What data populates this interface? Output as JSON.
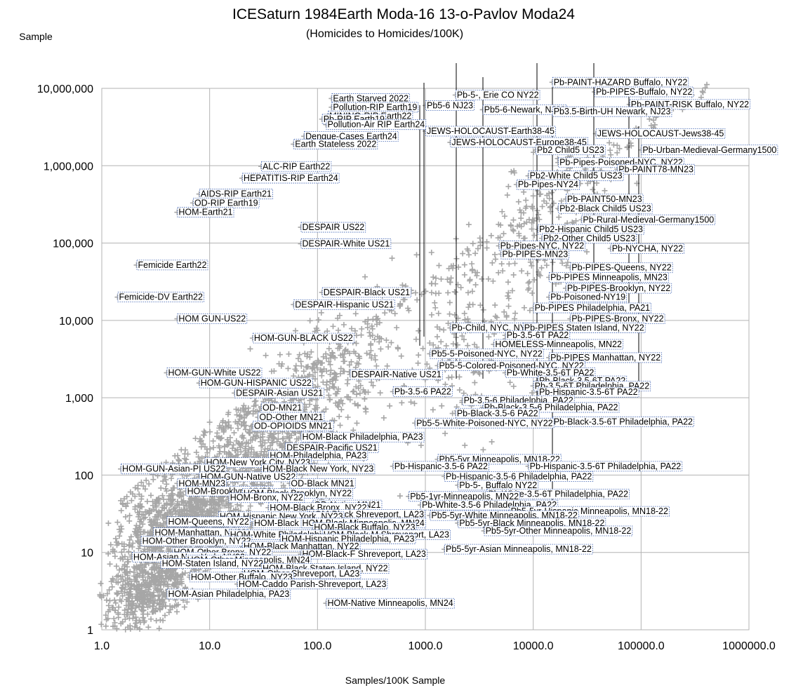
{
  "chart_data": {
    "type": "scatter",
    "title": "ICESaturn 1984Earth Moda-16 13-o-Pavlov Moda24",
    "subtitle": "(Homicides to Homicides/100K)",
    "xlabel": "Samples/100K Sample",
    "ylabel": "Sample",
    "x_scale": "log",
    "y_scale": "log",
    "xlim": [
      1,
      1000000
    ],
    "ylim": [
      1,
      10000000
    ],
    "x_ticks": [
      "1.0",
      "10.0",
      "100.0",
      "1000.0",
      "10000.0",
      "100000.0",
      "1000000.0"
    ],
    "y_ticks": [
      "1",
      "10",
      "100",
      "1,000",
      "10,000",
      "100,000",
      "1,000,000",
      "10,000,000"
    ],
    "grid": true,
    "legend": "none",
    "marker_color": "#a6a6a6",
    "labeled_points": [
      {
        "label": "Earth Starved 2022",
        "x": 135,
        "y": 7400000
      },
      {
        "label": "Pollution-RIP Earth19",
        "x": 135,
        "y": 5700000
      },
      {
        "label": "MINING-RIP Earth22",
        "x": 125,
        "y": 4400000
      },
      {
        "label": "Pb-RIP Earth19",
        "x": 110,
        "y": 4000000
      },
      {
        "label": "Pollution-Air RIP Earth24",
        "x": 120,
        "y": 3400000
      },
      {
        "label": "Dengue-Cases Earth24",
        "x": 75,
        "y": 2400000
      },
      {
        "label": "Earth Stateless 2022",
        "x": 60,
        "y": 1900000
      },
      {
        "label": "ALC-RIP Earth22",
        "x": 30,
        "y": 980000
      },
      {
        "label": "HEPATITIS-RIP Earth24",
        "x": 20,
        "y": 690000
      },
      {
        "label": "AIDS-RIP Earth21",
        "x": 8,
        "y": 430000
      },
      {
        "label": "OD-RIP Earth19",
        "x": 7,
        "y": 330000
      },
      {
        "label": "HOM-Earth21",
        "x": 5,
        "y": 250000
      },
      {
        "label": "Femicide Earth22",
        "x": 2.1,
        "y": 52000
      },
      {
        "label": "Femicide-DV Earth22",
        "x": 1.4,
        "y": 20000
      },
      {
        "label": "HOM GUN-US22",
        "x": 5,
        "y": 10500
      },
      {
        "label": "HOM-GUN-BLACK US22",
        "x": 25,
        "y": 5900
      },
      {
        "label": "HOM-GUN-White US22",
        "x": 4,
        "y": 2100
      },
      {
        "label": "HOM-GUN-HISPANIC US22",
        "x": 8,
        "y": 1550
      },
      {
        "label": "DESPAIR-Asian US21",
        "x": 17,
        "y": 1150
      },
      {
        "label": "DESPAIR US22",
        "x": 70,
        "y": 160000
      },
      {
        "label": "DESPAIR-White US21",
        "x": 70,
        "y": 98000
      },
      {
        "label": "DESPAIR-Black US21",
        "x": 110,
        "y": 23000
      },
      {
        "label": "DESPAIR-Hispanic US21",
        "x": 60,
        "y": 16000
      },
      {
        "label": "DESPAIR-Native US21",
        "x": 200,
        "y": 2000
      },
      {
        "label": "OD-MN21",
        "x": 30,
        "y": 740
      },
      {
        "label": "OD-Other MN21",
        "x": 28,
        "y": 560
      },
      {
        "label": "OD-OPIOIDS MN21",
        "x": 25,
        "y": 430
      },
      {
        "label": "HOM-Black Philadelphia, PA23",
        "x": 70,
        "y": 310
      },
      {
        "label": "DESPAIR-Pacific US21",
        "x": 50,
        "y": 225
      },
      {
        "label": "HOM-Philadelphia, PA23",
        "x": 35,
        "y": 180
      },
      {
        "label": "HOM-New York City, NY23",
        "x": 9,
        "y": 145
      },
      {
        "label": "HOM-GUN-Asian-PI US22",
        "x": 1.5,
        "y": 120
      },
      {
        "label": "HOM-Black New York, NY23",
        "x": 30,
        "y": 120
      },
      {
        "label": "HOM-GUN-Native US22",
        "x": 8,
        "y": 95
      },
      {
        "label": "HOM-MN23",
        "x": 5,
        "y": 78
      },
      {
        "label": "OD-Black MN21",
        "x": 55,
        "y": 78
      },
      {
        "label": "HOM-Brooklyn, NY22",
        "x": 6,
        "y": 62
      },
      {
        "label": "HOM-Black Brooklyn, NY22",
        "x": 20,
        "y": 58
      },
      {
        "label": "HOM-Bronx, NY22",
        "x": 15,
        "y": 51
      },
      {
        "label": "OD-Native MN21",
        "x": 90,
        "y": 41
      },
      {
        "label": "HOM-Black Bronx, NY22",
        "x": 35,
        "y": 38
      },
      {
        "label": "HOM-Black Shreveport, LA23",
        "x": 80,
        "y": 31
      },
      {
        "label": "HOM-Hispanic New York, NY23",
        "x": 12,
        "y": 29
      },
      {
        "label": "HOM-Queens, NY22",
        "x": 4,
        "y": 25
      },
      {
        "label": "HOM-Black Queens, NY22",
        "x": 25,
        "y": 24
      },
      {
        "label": "HOM-Black Minneapolis, MN24",
        "x": 70,
        "y": 24
      },
      {
        "label": "HOM-Black Buffalo, NY23",
        "x": 90,
        "y": 21
      },
      {
        "label": "HOM-Manhattan, NY22",
        "x": 3,
        "y": 18
      },
      {
        "label": "HOM-White Philadelphia, PA23",
        "x": 15,
        "y": 17
      },
      {
        "label": "HOM-Black-M Shreveport, LA23",
        "x": 110,
        "y": 17
      },
      {
        "label": "HOM-Hispanic Philadelphia, PA23",
        "x": 45,
        "y": 15
      },
      {
        "label": "HOM-Other Brooklyn, NY22",
        "x": 2.3,
        "y": 14
      },
      {
        "label": "HOM-Black Manhattan, NY22",
        "x": 20,
        "y": 12
      },
      {
        "label": "HOM-Other Bronx, NY22",
        "x": 4.5,
        "y": 10
      },
      {
        "label": "HOM-Black-F Shreveport, LA23",
        "x": 70,
        "y": 9.5
      },
      {
        "label": "HOM-Asian New York, NY23",
        "x": 1.9,
        "y": 8.7
      },
      {
        "label": "HOM-Other Minneapolis, MN24",
        "x": 6,
        "y": 8
      },
      {
        "label": "HOM-Staten Island, NY22",
        "x": 3.5,
        "y": 7.2
      },
      {
        "label": "HOM-Black Staten Island, NY22",
        "x": 30,
        "y": 6.2
      },
      {
        "label": "HOM-Other Shreveport, LA23",
        "x": 20,
        "y": 5.3
      },
      {
        "label": "HOM-Other Buffalo, NY23",
        "x": 6.5,
        "y": 4.8
      },
      {
        "label": "HOM-Caddo Parish-Shreveport, LA23",
        "x": 18,
        "y": 3.9
      },
      {
        "label": "HOM-Asian Philadelphia, PA23",
        "x": 4,
        "y": 2.9
      },
      {
        "label": "HOM-Native Minneapolis, MN24",
        "x": 120,
        "y": 2.2
      },
      {
        "label": "Pb5-6 NJ23",
        "x": 1000,
        "y": 6000000
      },
      {
        "label": "Pb-5-, Erie CO NY22",
        "x": 1900,
        "y": 8200000
      },
      {
        "label": "Pb5-6-Newark, NJ23",
        "x": 3400,
        "y": 5300000
      },
      {
        "label": "JEWS-HOLOCAUST-Earth38-45",
        "x": 1000,
        "y": 2800000
      },
      {
        "label": "JEWS-HOLOCAUST-Europe38-45",
        "x": 1700,
        "y": 2000000
      },
      {
        "label": "Pb-PAINT-HAZARD Buffalo, NY22",
        "x": 15000,
        "y": 12000000
      },
      {
        "label": "Pb-PIPES-Buffalo, NY22",
        "x": 37000,
        "y": 9000000
      },
      {
        "label": "Pb-PAINT-RISK Buffalo, NY22",
        "x": 78000,
        "y": 6200000
      },
      {
        "label": "Pb3.5-Birth-UH Newark, NJ23",
        "x": 15000,
        "y": 5000000
      },
      {
        "label": "JEWS-HOLOCAUST-Jews38-45",
        "x": 38000,
        "y": 2600000
      },
      {
        "label": "Pb2 Child5 US23",
        "x": 10500,
        "y": 1600000
      },
      {
        "label": "Pb-Urban-Medieval-Germany1500",
        "x": 100000,
        "y": 1600000
      },
      {
        "label": "Pb-Pipes-Poisoned-NYC, NY22",
        "x": 17000,
        "y": 1100000
      },
      {
        "label": "Pb-PAINT78-MN23",
        "x": 60000,
        "y": 900000
      },
      {
        "label": "Pb2-White Child5 US23",
        "x": 9000,
        "y": 740000
      },
      {
        "label": "Pb-Pipes-NY24",
        "x": 7000,
        "y": 570000
      },
      {
        "label": "Pb-PAINT50-MN23",
        "x": 20000,
        "y": 370000
      },
      {
        "label": "Pb2-Black Child5 US23",
        "x": 17000,
        "y": 280000
      },
      {
        "label": "Pb-Rural-Medieval-Germany1500",
        "x": 28000,
        "y": 200000
      },
      {
        "label": "Pb2-Hispanic Child5 US23",
        "x": 11000,
        "y": 150000
      },
      {
        "label": "Pb2-Other Child5 US23",
        "x": 12000,
        "y": 115000
      },
      {
        "label": "Pb-Pipes-NYC, NY22",
        "x": 4800,
        "y": 92000
      },
      {
        "label": "Pb-PIPES-MN23",
        "x": 5000,
        "y": 72000
      },
      {
        "label": "Pb-NYCHA, NY22",
        "x": 52000,
        "y": 85000
      },
      {
        "label": "Pb-PIPES-Queens, NY22",
        "x": 22000,
        "y": 48000
      },
      {
        "label": "Pb-PIPES Minneapolis, MN23",
        "x": 14000,
        "y": 36000
      },
      {
        "label": "Pb-PIPES-Brooklyn, NY22",
        "x": 20000,
        "y": 26000
      },
      {
        "label": "Pb-Poisoned-NY19",
        "x": 14000,
        "y": 20000
      },
      {
        "label": "Pb-PIPES Philadelphia, PA21",
        "x": 10000,
        "y": 14500
      },
      {
        "label": "Pb-PIPES-Bronx, NY22",
        "x": 22000,
        "y": 10500
      },
      {
        "label": "Pb-Child, NYC, NY23",
        "x": 1700,
        "y": 8000
      },
      {
        "label": "Pb-PIPES Staten Island, NY22",
        "x": 8000,
        "y": 8000
      },
      {
        "label": "Pb-3.5-6T PA22",
        "x": 5500,
        "y": 6400
      },
      {
        "label": "HOMELESS-Minneapolis, MN22",
        "x": 4300,
        "y": 4900
      },
      {
        "label": "Pb5-5-Poisoned-NYC, NY22",
        "x": 1100,
        "y": 3700
      },
      {
        "label": "Pb-PIPES Manhattan, NY22",
        "x": 14000,
        "y": 3300
      },
      {
        "label": "Pb5-5-Colored-Poisoned-NYC, NY22",
        "x": 1300,
        "y": 2600
      },
      {
        "label": "Pb-White-3.5-6T PA22",
        "x": 5500,
        "y": 2100
      },
      {
        "label": "Pb-Black-3.5-6T PA22",
        "x": 11000,
        "y": 1650
      },
      {
        "label": "Pb-3.5-6T Philadelphia, PA22",
        "x": 10000,
        "y": 1420
      },
      {
        "label": "Pb-Hispanic-3.5-6T PA22",
        "x": 11000,
        "y": 1180
      },
      {
        "label": "Pb-3.5-6 PA22",
        "x": 500,
        "y": 1200
      },
      {
        "label": "Pb-3.5-6 Philadelphia, PA22",
        "x": 2200,
        "y": 920
      },
      {
        "label": "Pb-Black-3.5-6 Philadelphia, PA22",
        "x": 3400,
        "y": 750
      },
      {
        "label": "Pb-Black-3.5-6 PA22",
        "x": 1900,
        "y": 630
      },
      {
        "label": "Pb-Black-3.5-6T Philadelphia, PA22",
        "x": 15000,
        "y": 490
      },
      {
        "label": "Pb5-5-White-Poisoned-NYC, NY22",
        "x": 800,
        "y": 470
      },
      {
        "label": "Pb5-5yr Minneapolis, MN18-22",
        "x": 1300,
        "y": 160
      },
      {
        "label": "Pb-Hispanic-3.5-6 PA22",
        "x": 500,
        "y": 130
      },
      {
        "label": "Pb-Hispanic-3.5-6T Philadelphia, PA22",
        "x": 9000,
        "y": 130
      },
      {
        "label": "Pb-Hispanic-3.5-6 Philadelphia, PA22",
        "x": 1500,
        "y": 96
      },
      {
        "label": "Pb-5-, Buffalo NY22",
        "x": 2000,
        "y": 74
      },
      {
        "label": "Pb-White-3.5-6T Philadelphia, PA22",
        "x": 3700,
        "y": 57
      },
      {
        "label": "Pb5-1yr-Minneapolis, MN22",
        "x": 700,
        "y": 53
      },
      {
        "label": "Pb-White-3.5-6 Philadelphia, PA22",
        "x": 900,
        "y": 41
      },
      {
        "label": "Pb5-5yr-Hispanic Minneapolis, MN18-22",
        "x": 6000,
        "y": 34
      },
      {
        "label": "Pb5-5yr-White Minneapolis, MN18-22",
        "x": 1100,
        "y": 30
      },
      {
        "label": "Pb5-5yr-Black Minneapolis, MN18-22",
        "x": 2000,
        "y": 24
      },
      {
        "label": "Pb5-5yr-Other Minneapolis, MN18-22",
        "x": 3500,
        "y": 19
      },
      {
        "label": "Pb5-5yr-Asian Minneapolis, MN18-22",
        "x": 1500,
        "y": 11
      }
    ]
  }
}
